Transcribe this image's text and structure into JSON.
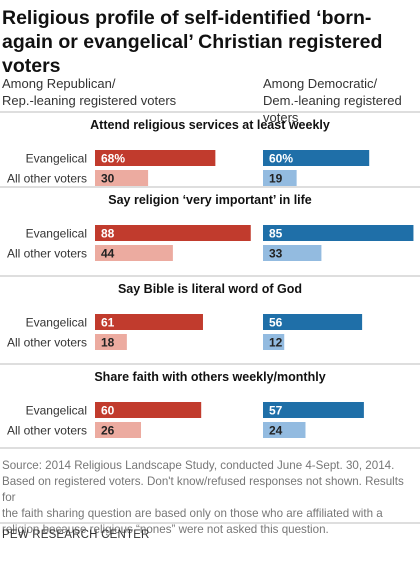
{
  "chart_data": {
    "type": "bar",
    "title": "Religious profile of self-identified ‘born-again or evangelical’ Christian registered voters",
    "column_headers": [
      "Among Republican/\nRep.-leaning registered voters",
      "Among Democratic/\nDem.-leaning registered voters"
    ],
    "row_labels": [
      "Evangelical",
      "All other voters"
    ],
    "panels": [
      {
        "title": "Attend religious services at least weekly",
        "republican": {
          "evangelical": 68,
          "all_other": 30
        },
        "democratic": {
          "evangelical": 60,
          "all_other": 19
        },
        "labels": {
          "rep_evangelical": "68%",
          "rep_other": "30",
          "dem_evangelical": "60%",
          "dem_other": "19"
        }
      },
      {
        "title": "Say religion ‘very important’ in life",
        "republican": {
          "evangelical": 88,
          "all_other": 44
        },
        "democratic": {
          "evangelical": 85,
          "all_other": 33
        },
        "labels": {
          "rep_evangelical": "88",
          "rep_other": "44",
          "dem_evangelical": "85",
          "dem_other": "33"
        }
      },
      {
        "title": "Say Bible is literal word of God",
        "republican": {
          "evangelical": 61,
          "all_other": 18
        },
        "democratic": {
          "evangelical": 56,
          "all_other": 12
        },
        "labels": {
          "rep_evangelical": "61",
          "rep_other": "18",
          "dem_evangelical": "56",
          "dem_other": "12"
        }
      },
      {
        "title": "Share faith with others weekly/monthly",
        "republican": {
          "evangelical": 60,
          "all_other": 26
        },
        "democratic": {
          "evangelical": 57,
          "all_other": 24
        },
        "labels": {
          "rep_evangelical": "60",
          "rep_other": "26",
          "dem_evangelical": "57",
          "dem_other": "24"
        }
      }
    ],
    "colors": {
      "rep_evangelical": "#c13b2d",
      "rep_other": "#ecaba0",
      "dem_evangelical": "#1f6fa8",
      "dem_other": "#93bbe0",
      "divider": "#bdbdbd"
    },
    "note": "Source: 2014 Religious Landscape Study, conducted June 4-Sept. 30, 2014.\nBased on registered voters. Don't know/refused responses not shown. Results for\nthe faith sharing question are based only on those who are affiliated with a\nreligion because religious “nones” were not asked this question.",
    "source": "PEW RESEARCH CENTER"
  }
}
